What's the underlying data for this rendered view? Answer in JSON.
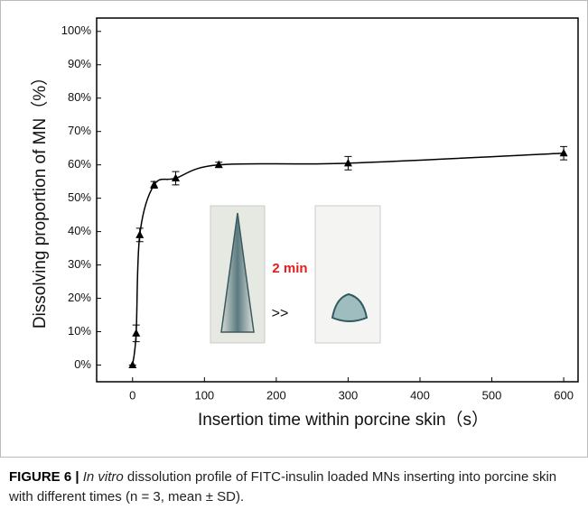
{
  "chart_data": {
    "type": "scatter",
    "xlabel": "Insertion time within porcine skin（s）",
    "ylabel": "Dissolving proportion of MN（%）",
    "x": [
      0,
      5,
      10,
      30,
      60,
      120,
      300,
      600
    ],
    "values": [
      0,
      9.5,
      39,
      54,
      56,
      60,
      60.5,
      63.5
    ],
    "errors": [
      0,
      2.5,
      2,
      1,
      2,
      0.8,
      2,
      2
    ],
    "color": "#000000",
    "xlim": [
      -50,
      620
    ],
    "ylim": [
      -5,
      104
    ],
    "xticks": [
      0,
      100,
      200,
      300,
      400,
      500,
      600
    ],
    "yticks": [
      {
        "value": 0,
        "label": "0%"
      },
      {
        "value": 10,
        "label": "10%"
      },
      {
        "value": 20,
        "label": "20%"
      },
      {
        "value": 30,
        "label": "30%"
      },
      {
        "value": 40,
        "label": "40%"
      },
      {
        "value": 50,
        "label": "50%"
      },
      {
        "value": 60,
        "label": "60%"
      },
      {
        "value": 70,
        "label": "70%"
      },
      {
        "value": 80,
        "label": "80%"
      },
      {
        "value": 90,
        "label": "90%"
      },
      {
        "value": 100,
        "label": "100%"
      }
    ],
    "inset_label": "2 min"
  },
  "caption": {
    "figure": "FIGURE 6 |",
    "italic": "In vitro",
    "text": "dissolution profile of FITC-insulin loaded MNs inserting into porcine skin with different times (n = 3, mean ± SD)."
  }
}
